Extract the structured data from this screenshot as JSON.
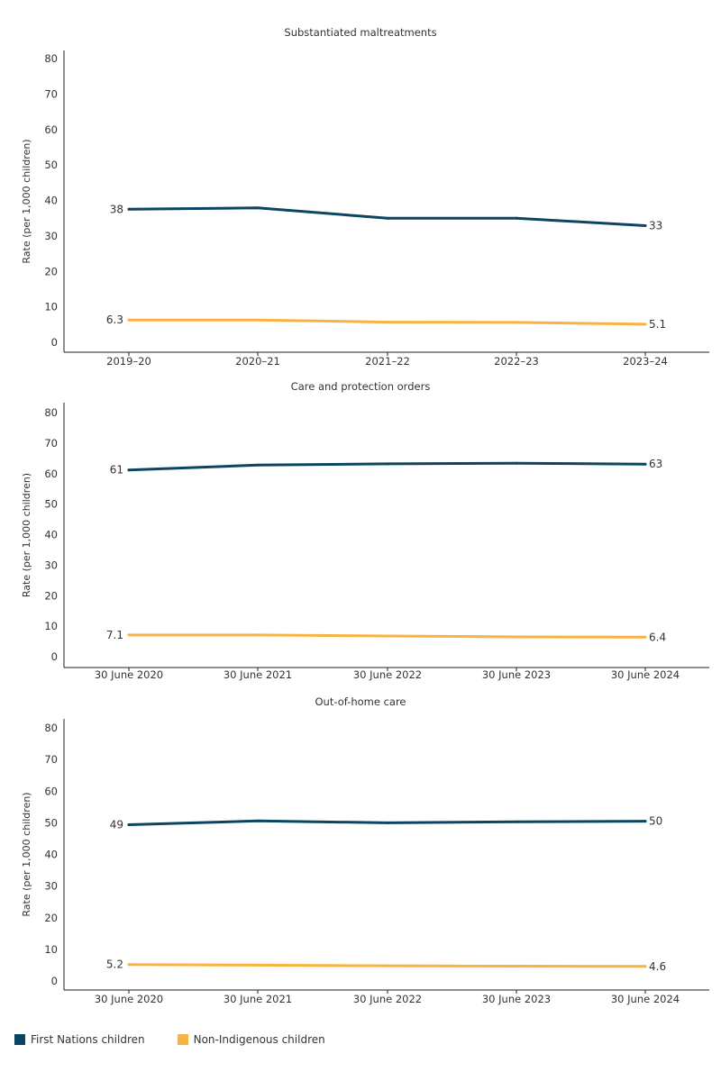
{
  "colors": {
    "first_nations": "#0b4561",
    "non_indigenous": "#f9b342"
  },
  "legend": {
    "first_nations": "First Nations children",
    "non_indigenous": "Non-Indigenous children"
  },
  "chart_data": [
    {
      "type": "line",
      "title": "Substantiated maltreatments",
      "ylabel": "Rate (per 1,000 children)",
      "xlabel": "",
      "categories": [
        "2019–20",
        "2020–21",
        "2021–22",
        "2022–23",
        "2023–24"
      ],
      "ylim": [
        0,
        80
      ],
      "yticks": [
        0,
        10,
        20,
        30,
        40,
        50,
        60,
        70,
        80
      ],
      "series": [
        {
          "name": "First Nations children",
          "values": [
            37.5,
            37.9,
            35.0,
            35.0,
            32.9
          ],
          "start_label": "38",
          "end_label": "33"
        },
        {
          "name": "Non-Indigenous children",
          "values": [
            6.3,
            6.3,
            5.7,
            5.6,
            5.1
          ],
          "start_label": "6.3",
          "end_label": "5.1"
        }
      ]
    },
    {
      "type": "line",
      "title": "Care and protection orders",
      "ylabel": "Rate (per 1,000 children)",
      "xlabel": "",
      "categories": [
        "30 June 2020",
        "30 June 2021",
        "30 June 2022",
        "30 June 2023",
        "30 June 2024"
      ],
      "ylim": [
        0,
        80
      ],
      "yticks": [
        0,
        10,
        20,
        30,
        40,
        50,
        60,
        70,
        80
      ],
      "series": [
        {
          "name": "First Nations children",
          "values": [
            61.2,
            62.8,
            63.2,
            63.4,
            63.1
          ],
          "start_label": "61",
          "end_label": "63"
        },
        {
          "name": "Non-Indigenous children",
          "values": [
            7.1,
            7.1,
            6.8,
            6.5,
            6.4
          ],
          "start_label": "7.1",
          "end_label": "6.4"
        }
      ]
    },
    {
      "type": "line",
      "title": "Out-of-home care",
      "ylabel": "Rate (per 1,000 children)",
      "xlabel": "",
      "categories": [
        "30 June 2020",
        "30 June 2021",
        "30 June 2022",
        "30 June 2023",
        "30 June 2024"
      ],
      "ylim": [
        0,
        80
      ],
      "yticks": [
        0,
        10,
        20,
        30,
        40,
        50,
        60,
        70,
        80
      ],
      "series": [
        {
          "name": "First Nations children",
          "values": [
            49.4,
            50.6,
            50.0,
            50.3,
            50.5
          ],
          "start_label": "49",
          "end_label": "50"
        },
        {
          "name": "Non-Indigenous children",
          "values": [
            5.2,
            5.0,
            4.8,
            4.7,
            4.6
          ],
          "start_label": "5.2",
          "end_label": "4.6"
        }
      ]
    }
  ]
}
